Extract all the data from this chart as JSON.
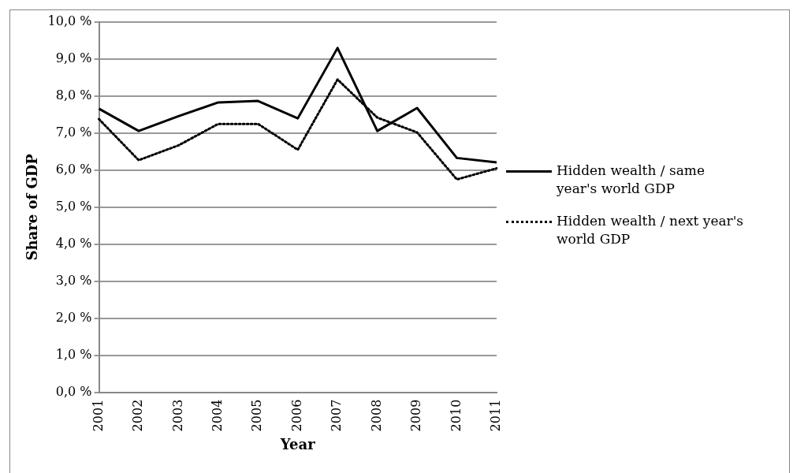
{
  "chart_data": {
    "type": "line",
    "xlabel": "Year",
    "ylabel": "Share of GDP",
    "categories": [
      "2001",
      "2002",
      "2003",
      "2004",
      "2005",
      "2006",
      "2007",
      "2008",
      "2009",
      "2010",
      "2011"
    ],
    "series": [
      {
        "name": "Hidden wealth / same year's world GDP",
        "color": "#000000",
        "line_style": "solid",
        "values": [
          7.66,
          7.06,
          7.46,
          7.83,
          7.87,
          7.4,
          9.3,
          7.06,
          7.68,
          6.33,
          6.21
        ]
      },
      {
        "name": "Hidden wealth / next year's world GDP",
        "color": "#000000",
        "line_style": "dotted",
        "values": [
          7.38,
          6.27,
          6.67,
          7.25,
          7.25,
          6.55,
          8.45,
          7.42,
          7.02,
          5.75,
          6.05
        ]
      }
    ],
    "ylim": [
      0,
      10
    ],
    "yticks": [
      {
        "value": 0,
        "label": "0,0 %"
      },
      {
        "value": 1,
        "label": "1,0 %"
      },
      {
        "value": 2,
        "label": "2,0 %"
      },
      {
        "value": 3,
        "label": "3,0 %"
      },
      {
        "value": 4,
        "label": "4,0 %"
      },
      {
        "value": 5,
        "label": "5,0 %"
      },
      {
        "value": 6,
        "label": "6,0 %"
      },
      {
        "value": 7,
        "label": "7,0 %"
      },
      {
        "value": 8,
        "label": "8,0 %"
      },
      {
        "value": 9,
        "label": "9,0 %"
      },
      {
        "value": 10,
        "label": "10,0 %"
      }
    ],
    "grid": "y",
    "legend": "right",
    "marker": "none"
  }
}
